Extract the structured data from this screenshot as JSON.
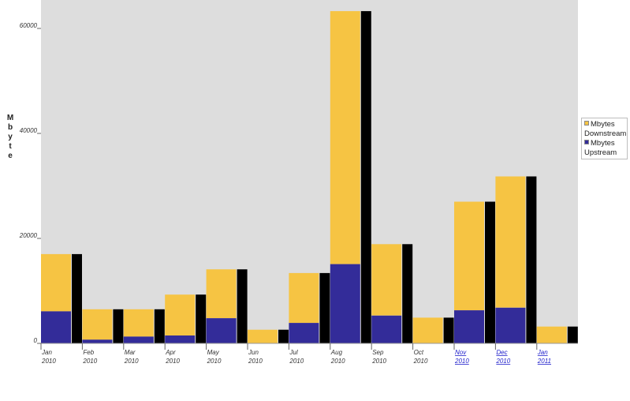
{
  "chart_data": {
    "type": "bar",
    "title": "",
    "ylabel": "Mbyte",
    "xlabel": "",
    "ylim": [
      0,
      64000
    ],
    "yticks": [
      {
        "value": 0,
        "label": "0"
      },
      {
        "value": 20000,
        "label": "20000"
      },
      {
        "value": 40000,
        "label": "40000"
      },
      {
        "value": 60000,
        "label": "60000"
      }
    ],
    "grid": false,
    "legend_position": "right",
    "categories": [
      {
        "month": "Jan",
        "year": "2010",
        "link": false
      },
      {
        "month": "Feb",
        "year": "2010",
        "link": false
      },
      {
        "month": "Mar",
        "year": "2010",
        "link": false
      },
      {
        "month": "Apr",
        "year": "2010",
        "link": false
      },
      {
        "month": "May",
        "year": "2010",
        "link": false
      },
      {
        "month": "Jun",
        "year": "2010",
        "link": false
      },
      {
        "month": "Jul",
        "year": "2010",
        "link": false
      },
      {
        "month": "Aug",
        "year": "2010",
        "link": false
      },
      {
        "month": "Sep",
        "year": "2010",
        "link": false
      },
      {
        "month": "Oct",
        "year": "2010",
        "link": false
      },
      {
        "month": "Nov",
        "year": "2010",
        "link": true
      },
      {
        "month": "Dec",
        "year": "2010",
        "link": true
      },
      {
        "month": "Jan",
        "year": "2011",
        "link": true
      }
    ],
    "series": [
      {
        "name": "Mbytes Downstream",
        "color": "#f6c443",
        "values": [
          10900,
          5800,
          5200,
          7800,
          9300,
          2600,
          9500,
          48200,
          13600,
          4900,
          20700,
          25000,
          3200
        ]
      },
      {
        "name": "Mbytes Upstream",
        "color": "#332c99",
        "values": [
          6100,
          700,
          1300,
          1500,
          4800,
          0,
          3900,
          15100,
          5300,
          0,
          6300,
          6800,
          0
        ]
      }
    ],
    "total_bar_color": "#000000",
    "plot_background": "#dddddd"
  }
}
